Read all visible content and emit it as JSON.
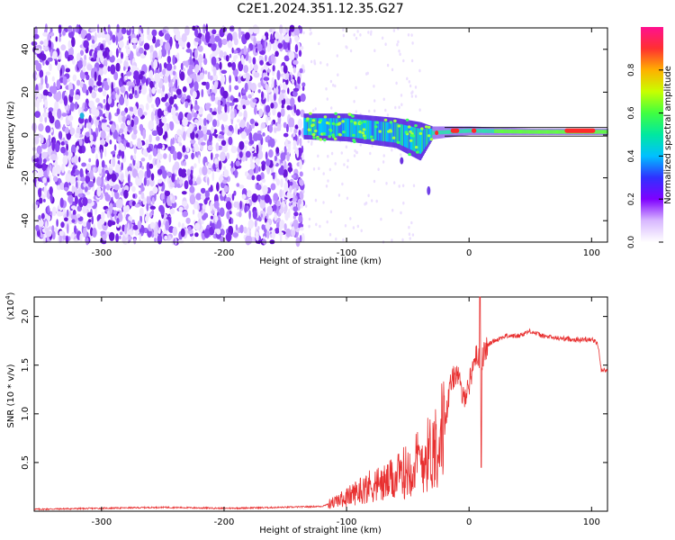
{
  "figure": {
    "title": "C2E1.2024.351.12.35.G27"
  },
  "chart_data": [
    {
      "type": "heatmap",
      "xlabel": "Height of straight line (km)",
      "ylabel": "Frequency (Hz)",
      "xlim": [
        -355,
        113
      ],
      "ylim": [
        -50,
        50
      ],
      "x_ticks": [
        -300,
        -200,
        -100,
        0,
        100
      ],
      "y_ticks": [
        -40,
        -20,
        0,
        20,
        40
      ],
      "noise_region_x": [
        -355,
        -135
      ],
      "signal_band": [
        {
          "x": -135,
          "y_min": -2,
          "y_max": 10
        },
        {
          "x": -100,
          "y_min": -3,
          "y_max": 10
        },
        {
          "x": -60,
          "y_min": -6,
          "y_max": 8
        },
        {
          "x": -40,
          "y_min": -12,
          "y_max": 6
        },
        {
          "x": -30,
          "y_min": -2,
          "y_max": 4
        },
        {
          "x": 0,
          "y_min": 0,
          "y_max": 4
        },
        {
          "x": 50,
          "y_min": 0,
          "y_max": 3
        },
        {
          "x": 113,
          "y_min": 0,
          "y_max": 3
        }
      ],
      "peak_regions": [
        {
          "x_start": -28,
          "x_end": -25,
          "y": 1
        },
        {
          "x_start": -15,
          "x_end": -8,
          "y": 2
        },
        {
          "x_start": 2,
          "x_end": 6,
          "y": 2
        },
        {
          "x_start": 78,
          "x_end": 103,
          "y": 2
        }
      ],
      "colorbar": {
        "label": "Normalized spectral amplitude",
        "range": [
          0,
          1
        ],
        "ticks": [
          "0.0",
          "0.2",
          "0.4",
          "0.6",
          "0.8"
        ],
        "colors": [
          "#ffffff",
          "#d8b8ff",
          "#7f00ff",
          "#3030ff",
          "#00c0ff",
          "#00e8a0",
          "#40ff40",
          "#c8ff00",
          "#ffb000",
          "#ff3030",
          "#ff1090"
        ]
      }
    },
    {
      "type": "line",
      "xlabel": "Height of straight line (km)",
      "ylabel": "SNR (10 * v/v)",
      "scale_label": "(x10",
      "scale_exponent": "4",
      "xlim": [
        -355,
        113
      ],
      "ylim": [
        0,
        2.2
      ],
      "x_ticks": [
        -300,
        -200,
        -100,
        0,
        100
      ],
      "y_ticks": [
        0.5,
        1.0,
        1.5,
        2.0
      ],
      "y_tick_labels": [
        "0.5",
        "1.0",
        "1.5",
        "2.0"
      ],
      "line_color": "#e83030",
      "series": [
        {
          "x": [
            -355,
            -300,
            -250,
            -200,
            -150,
            -120,
            -110,
            -100,
            -90,
            -80,
            -70,
            -60,
            -50,
            -40,
            -30,
            -25,
            -20,
            -15,
            -10,
            -5,
            0,
            5,
            10,
            15,
            20,
            30,
            40,
            50,
            60,
            70,
            80,
            90,
            100,
            105,
            108,
            113
          ],
          "y": [
            0.02,
            0.03,
            0.04,
            0.03,
            0.04,
            0.05,
            0.1,
            0.15,
            0.22,
            0.28,
            0.3,
            0.35,
            0.45,
            0.55,
            0.65,
            0.8,
            0.9,
            1.3,
            1.45,
            1.15,
            1.3,
            1.6,
            1.55,
            1.7,
            1.75,
            1.8,
            1.8,
            1.85,
            1.8,
            1.78,
            1.77,
            1.76,
            1.77,
            1.72,
            1.45,
            1.45
          ]
        }
      ]
    }
  ]
}
